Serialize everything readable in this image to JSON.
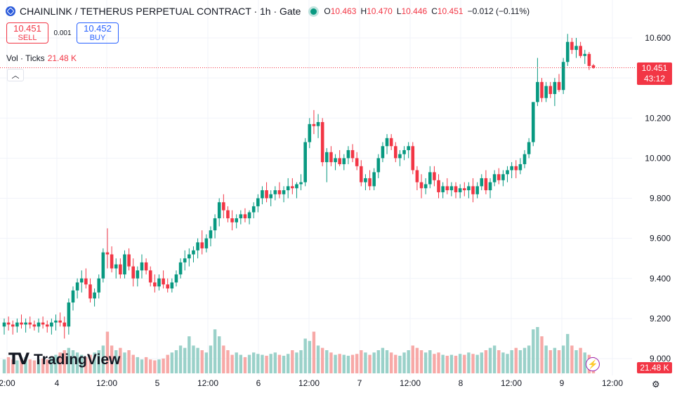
{
  "header": {
    "title": "CHAINLINK / TETHERUS PERPETUAL CONTRACT · 1h · Gate",
    "symbol_icon": "chainlink-logo-icon",
    "live_icon": "market-open-dot-icon",
    "ohlc": {
      "o_label": "O",
      "o": "10.463",
      "h_label": "H",
      "h": "10.470",
      "l_label": "L",
      "l": "10.446",
      "c_label": "C",
      "c": "10.451",
      "change": "−0.012 (−0.11%)"
    }
  },
  "trade": {
    "sell_price": "10.451",
    "sell_label": "SELL",
    "spread": "0.001",
    "buy_price": "10.452",
    "buy_label": "BUY"
  },
  "volume_legend": {
    "label": "Vol · Ticks",
    "value": "21.48 K"
  },
  "last_price": {
    "price": "10.451",
    "countdown": "43:12",
    "volume_badge": "21.48 K"
  },
  "branding": {
    "logo_mark": "TV",
    "wordmark": "TradingView"
  },
  "icons": {
    "collapse": "chevron-up-icon",
    "bolt": "lightning-icon",
    "settings": "gear-icon"
  },
  "colors": {
    "up": "#089981",
    "down": "#f23645",
    "up_vol": "#9ad1c9",
    "down_vol": "#f7a9a7"
  },
  "chart_data": {
    "type": "candlestick",
    "interval": "1h",
    "y_ticks": [
      9.0,
      9.2,
      9.4,
      9.6,
      9.8,
      10.0,
      10.2,
      10.4,
      10.6
    ],
    "y_tick_labels": [
      "9.000",
      "9.200",
      "9.400",
      "9.600",
      "9.800",
      "10.000",
      "10.200",
      "10.400",
      "10.600"
    ],
    "ylim": [
      8.98,
      10.68
    ],
    "x_tick_labels": [
      "2:00",
      "4",
      "12:00",
      "5",
      "12:00",
      "6",
      "12:00",
      "7",
      "12:00",
      "8",
      "12:00",
      "9",
      "12:00"
    ],
    "grid": true,
    "last_price": 10.451,
    "candles": [
      [
        9.16,
        9.2,
        9.12,
        9.18
      ],
      [
        9.18,
        9.21,
        9.14,
        9.17
      ],
      [
        9.17,
        9.19,
        9.12,
        9.16
      ],
      [
        9.16,
        9.2,
        9.13,
        9.18
      ],
      [
        9.18,
        9.22,
        9.15,
        9.17
      ],
      [
        9.17,
        9.2,
        9.13,
        9.18
      ],
      [
        9.18,
        9.21,
        9.15,
        9.17
      ],
      [
        9.17,
        9.19,
        9.14,
        9.16
      ],
      [
        9.16,
        9.2,
        9.13,
        9.18
      ],
      [
        9.18,
        9.21,
        9.15,
        9.17
      ],
      [
        9.17,
        9.19,
        9.13,
        9.16
      ],
      [
        9.16,
        9.2,
        9.12,
        9.18
      ],
      [
        9.18,
        9.22,
        9.14,
        9.19
      ],
      [
        9.19,
        9.23,
        9.16,
        9.18
      ],
      [
        9.18,
        9.21,
        9.1,
        9.16
      ],
      [
        9.16,
        9.3,
        9.12,
        9.28
      ],
      [
        9.28,
        9.36,
        9.24,
        9.34
      ],
      [
        9.34,
        9.4,
        9.3,
        9.38
      ],
      [
        9.38,
        9.44,
        9.33,
        9.4
      ],
      [
        9.4,
        9.45,
        9.35,
        9.37
      ],
      [
        9.37,
        9.4,
        9.28,
        9.3
      ],
      [
        9.3,
        9.35,
        9.26,
        9.33
      ],
      [
        9.33,
        9.42,
        9.3,
        9.4
      ],
      [
        9.4,
        9.55,
        9.38,
        9.53
      ],
      [
        9.53,
        9.65,
        9.45,
        9.52
      ],
      [
        9.52,
        9.56,
        9.43,
        9.45
      ],
      [
        9.45,
        9.5,
        9.4,
        9.47
      ],
      [
        9.47,
        9.5,
        9.4,
        9.42
      ],
      [
        9.42,
        9.54,
        9.4,
        9.52
      ],
      [
        9.52,
        9.55,
        9.44,
        9.46
      ],
      [
        9.46,
        9.5,
        9.36,
        9.4
      ],
      [
        9.4,
        9.46,
        9.36,
        9.44
      ],
      [
        9.44,
        9.52,
        9.4,
        9.48
      ],
      [
        9.48,
        9.5,
        9.42,
        9.44
      ],
      [
        9.44,
        9.46,
        9.36,
        9.38
      ],
      [
        9.38,
        9.42,
        9.33,
        9.36
      ],
      [
        9.36,
        9.42,
        9.34,
        9.4
      ],
      [
        9.4,
        9.44,
        9.35,
        9.37
      ],
      [
        9.37,
        9.4,
        9.33,
        9.35
      ],
      [
        9.35,
        9.4,
        9.33,
        9.38
      ],
      [
        9.38,
        9.44,
        9.36,
        9.42
      ],
      [
        9.42,
        9.5,
        9.4,
        9.48
      ],
      [
        9.48,
        9.54,
        9.44,
        9.5
      ],
      [
        9.5,
        9.55,
        9.46,
        9.52
      ],
      [
        9.52,
        9.56,
        9.48,
        9.54
      ],
      [
        9.54,
        9.6,
        9.5,
        9.58
      ],
      [
        9.58,
        9.64,
        9.52,
        9.55
      ],
      [
        9.55,
        9.62,
        9.53,
        9.6
      ],
      [
        9.6,
        9.66,
        9.56,
        9.64
      ],
      [
        9.64,
        9.72,
        9.6,
        9.7
      ],
      [
        9.7,
        9.8,
        9.66,
        9.78
      ],
      [
        9.78,
        9.82,
        9.7,
        9.74
      ],
      [
        9.74,
        9.76,
        9.68,
        9.7
      ],
      [
        9.7,
        9.74,
        9.64,
        9.68
      ],
      [
        9.68,
        9.72,
        9.65,
        9.7
      ],
      [
        9.7,
        9.74,
        9.67,
        9.72
      ],
      [
        9.72,
        9.75,
        9.68,
        9.7
      ],
      [
        9.7,
        9.74,
        9.67,
        9.73
      ],
      [
        9.73,
        9.78,
        9.7,
        9.76
      ],
      [
        9.76,
        9.82,
        9.73,
        9.8
      ],
      [
        9.8,
        9.86,
        9.77,
        9.84
      ],
      [
        9.84,
        9.88,
        9.78,
        9.8
      ],
      [
        9.8,
        9.84,
        9.76,
        9.82
      ],
      [
        9.82,
        9.86,
        9.79,
        9.84
      ],
      [
        9.84,
        9.88,
        9.8,
        9.82
      ],
      [
        9.82,
        9.86,
        9.78,
        9.84
      ],
      [
        9.84,
        9.9,
        9.8,
        9.86
      ],
      [
        9.86,
        9.9,
        9.82,
        9.85
      ],
      [
        9.85,
        9.88,
        9.8,
        9.87
      ],
      [
        9.87,
        9.92,
        9.84,
        9.88
      ],
      [
        9.88,
        10.1,
        9.86,
        10.08
      ],
      [
        10.08,
        10.2,
        10.05,
        10.17
      ],
      [
        10.17,
        10.24,
        10.12,
        10.16
      ],
      [
        10.16,
        10.22,
        10.1,
        10.18
      ],
      [
        10.18,
        10.2,
        9.96,
        9.98
      ],
      [
        9.98,
        10.05,
        9.88,
        10.03
      ],
      [
        10.03,
        10.06,
        9.96,
        9.98
      ],
      [
        9.98,
        10.02,
        9.94,
        10.0
      ],
      [
        10.0,
        10.04,
        9.96,
        9.97
      ],
      [
        9.97,
        10.02,
        9.94,
        10.0
      ],
      [
        10.0,
        10.06,
        9.97,
        10.04
      ],
      [
        10.04,
        10.07,
        9.98,
        10.0
      ],
      [
        10.0,
        10.03,
        9.94,
        9.96
      ],
      [
        9.96,
        9.99,
        9.86,
        9.88
      ],
      [
        9.88,
        9.92,
        9.84,
        9.9
      ],
      [
        9.9,
        9.94,
        9.84,
        9.86
      ],
      [
        9.86,
        9.95,
        9.84,
        9.93
      ],
      [
        9.93,
        10.02,
        9.9,
        10.0
      ],
      [
        10.0,
        10.08,
        9.98,
        10.06
      ],
      [
        10.06,
        10.12,
        10.02,
        10.1
      ],
      [
        10.1,
        10.12,
        10.04,
        10.06
      ],
      [
        10.06,
        10.08,
        9.98,
        10.0
      ],
      [
        10.0,
        10.04,
        9.96,
        10.02
      ],
      [
        10.02,
        10.06,
        9.99,
        10.04
      ],
      [
        10.04,
        10.08,
        10.0,
        10.06
      ],
      [
        10.06,
        10.08,
        9.92,
        9.94
      ],
      [
        9.94,
        9.96,
        9.84,
        9.88
      ],
      [
        9.88,
        9.92,
        9.8,
        9.85
      ],
      [
        9.85,
        9.9,
        9.82,
        9.87
      ],
      [
        9.87,
        9.96,
        9.85,
        9.93
      ],
      [
        9.93,
        9.96,
        9.86,
        9.89
      ],
      [
        9.89,
        9.92,
        9.8,
        9.83
      ],
      [
        9.83,
        9.88,
        9.8,
        9.86
      ],
      [
        9.86,
        9.9,
        9.82,
        9.84
      ],
      [
        9.84,
        9.88,
        9.81,
        9.86
      ],
      [
        9.86,
        9.88,
        9.8,
        9.83
      ],
      [
        9.83,
        9.87,
        9.8,
        9.85
      ],
      [
        9.85,
        9.88,
        9.81,
        9.84
      ],
      [
        9.84,
        9.88,
        9.8,
        9.86
      ],
      [
        9.86,
        9.9,
        9.78,
        9.82
      ],
      [
        9.82,
        9.88,
        9.8,
        9.86
      ],
      [
        9.86,
        9.92,
        9.84,
        9.9
      ],
      [
        9.9,
        9.94,
        9.82,
        9.84
      ],
      [
        9.84,
        9.9,
        9.8,
        9.88
      ],
      [
        9.88,
        9.94,
        9.86,
        9.92
      ],
      [
        9.92,
        9.95,
        9.87,
        9.89
      ],
      [
        9.89,
        9.94,
        9.86,
        9.92
      ],
      [
        9.92,
        9.96,
        9.88,
        9.94
      ],
      [
        9.94,
        9.98,
        9.9,
        9.96
      ],
      [
        9.96,
        9.99,
        9.9,
        9.94
      ],
      [
        9.94,
        10.0,
        9.92,
        9.97
      ],
      [
        9.97,
        10.04,
        9.95,
        10.02
      ],
      [
        10.02,
        10.1,
        10.0,
        10.08
      ],
      [
        10.08,
        10.28,
        10.06,
        10.28
      ],
      [
        10.28,
        10.5,
        10.26,
        10.38
      ],
      [
        10.38,
        10.4,
        10.28,
        10.3
      ],
      [
        10.3,
        10.38,
        10.28,
        10.36
      ],
      [
        10.36,
        10.38,
        10.3,
        10.32
      ],
      [
        10.32,
        10.4,
        10.26,
        10.38
      ],
      [
        10.38,
        10.42,
        10.33,
        10.34
      ],
      [
        10.34,
        10.5,
        10.32,
        10.48
      ],
      [
        10.48,
        10.62,
        10.46,
        10.58
      ],
      [
        10.58,
        10.6,
        10.52,
        10.54
      ],
      [
        10.54,
        10.6,
        10.5,
        10.56
      ],
      [
        10.56,
        10.58,
        10.5,
        10.51
      ],
      [
        10.51,
        10.54,
        10.47,
        10.52
      ],
      [
        10.52,
        10.53,
        10.44,
        10.46
      ],
      [
        10.463,
        10.47,
        10.446,
        10.451
      ]
    ],
    "volume_relative": [
      0.3,
      0.35,
      0.3,
      0.28,
      0.32,
      0.35,
      0.3,
      0.28,
      0.3,
      0.32,
      0.3,
      0.35,
      0.4,
      0.45,
      0.5,
      0.55,
      0.5,
      0.45,
      0.4,
      0.35,
      0.4,
      0.45,
      0.5,
      0.6,
      0.9,
      0.6,
      0.5,
      0.55,
      0.45,
      0.5,
      0.4,
      0.35,
      0.3,
      0.35,
      0.3,
      0.28,
      0.3,
      0.32,
      0.4,
      0.45,
      0.5,
      0.6,
      0.55,
      0.8,
      0.6,
      0.55,
      0.5,
      0.45,
      0.6,
      0.95,
      0.8,
      0.6,
      0.5,
      0.4,
      0.45,
      0.4,
      0.35,
      0.4,
      0.45,
      0.42,
      0.4,
      0.38,
      0.42,
      0.45,
      0.4,
      0.38,
      0.42,
      0.5,
      0.45,
      0.5,
      0.75,
      0.7,
      0.9,
      0.6,
      0.55,
      0.5,
      0.45,
      0.4,
      0.42,
      0.4,
      0.38,
      0.4,
      0.42,
      0.5,
      0.45,
      0.4,
      0.45,
      0.5,
      0.55,
      0.5,
      0.45,
      0.4,
      0.38,
      0.45,
      0.5,
      0.6,
      0.55,
      0.5,
      0.45,
      0.5,
      0.42,
      0.45,
      0.4,
      0.38,
      0.4,
      0.38,
      0.42,
      0.4,
      0.45,
      0.42,
      0.4,
      0.45,
      0.5,
      0.55,
      0.6,
      0.5,
      0.45,
      0.42,
      0.5,
      0.55,
      0.5,
      0.55,
      0.6,
      0.95,
      1.0,
      0.8,
      0.6,
      0.5,
      0.55,
      0.5,
      0.6,
      0.85,
      0.6,
      0.5,
      0.55,
      0.45,
      0.4,
      0.35
    ]
  }
}
